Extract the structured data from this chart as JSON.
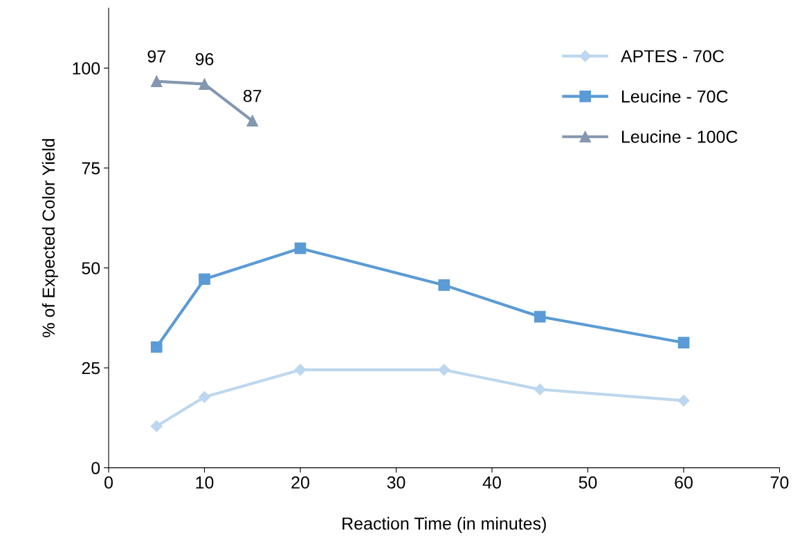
{
  "chart_data": {
    "type": "line",
    "xlabel": "Reaction Time (in minutes)",
    "ylabel": "% of Expected Color Yield",
    "xlim": [
      0,
      70
    ],
    "xticks": [
      0,
      10,
      20,
      30,
      40,
      50,
      60,
      70
    ],
    "ylim": [
      0,
      115
    ],
    "yticks": [
      0,
      25,
      50,
      75,
      100
    ],
    "grid": false,
    "legend": "top right",
    "line_style": "solid",
    "series": [
      {
        "name": "APTES - 70C",
        "color": "#bdd7ee",
        "marker": "diamond",
        "x": [
          5,
          10,
          20,
          35,
          45,
          60
        ],
        "values": [
          10.4,
          17.7,
          24.5,
          24.5,
          19.6,
          16.8
        ]
      },
      {
        "name": "Leucine - 70C",
        "color": "#5b9bd5",
        "marker": "square",
        "x": [
          5,
          10,
          20,
          35,
          45,
          60
        ],
        "values": [
          30.2,
          47.2,
          54.9,
          45.7,
          37.8,
          31.3
        ]
      },
      {
        "name": "Leucine - 100C",
        "color": "#8497b0",
        "marker": "triangle",
        "x": [
          5,
          10,
          15
        ],
        "values": [
          96.7,
          96.0,
          86.8
        ],
        "value_labels": [
          "97",
          "96",
          "87"
        ]
      }
    ]
  }
}
